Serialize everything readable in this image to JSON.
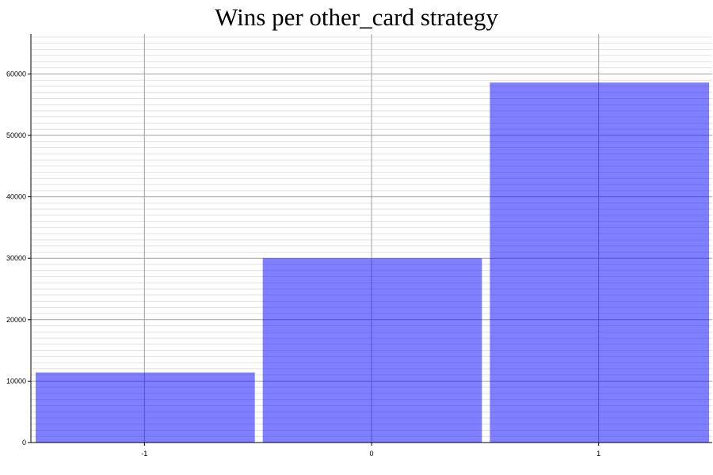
{
  "chart_data": {
    "type": "bar",
    "title": "Wins per other_card strategy",
    "xlabel": "",
    "ylabel": "",
    "categories": [
      "-1",
      "0",
      "1"
    ],
    "values": [
      11400,
      30000,
      58600
    ],
    "ylim": [
      0,
      66500
    ],
    "yticks": [
      0,
      10000,
      20000,
      30000,
      40000,
      50000,
      60000
    ],
    "ytick_labels": [
      "0",
      "10000",
      "20000",
      "30000",
      "40000",
      "50000",
      "60000"
    ],
    "minor_grid_step": 1000,
    "grid": true,
    "bar_color": "#0000ff",
    "bar_opacity": 0.5
  }
}
